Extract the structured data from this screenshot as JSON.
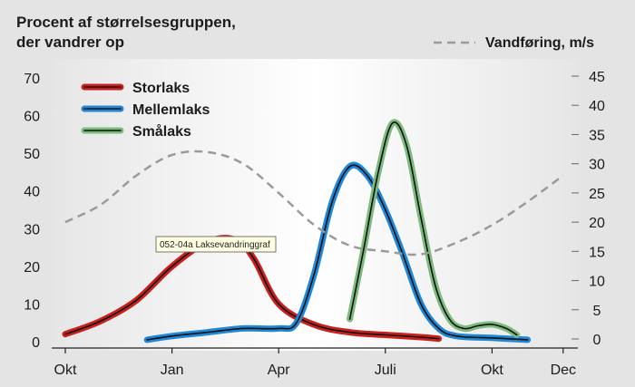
{
  "chart_data": {
    "type": "line",
    "title": "Procent af størrelsesgruppen,\nder vandrer op",
    "title_lines": [
      "Procent af størrelsesgruppen,",
      "der vandrer op"
    ],
    "secondary_label": "Vandføring, m/s",
    "x_ticks": [
      "Okt",
      "Jan",
      "Apr",
      "Juli",
      "Okt",
      "Dec"
    ],
    "x_tick_months": [
      0,
      3,
      6,
      9,
      12,
      14
    ],
    "xlim": [
      -0.15,
      14.6
    ],
    "ylim": [
      0,
      75
    ],
    "y_ticks": [
      0,
      10,
      20,
      30,
      40,
      50,
      60,
      70
    ],
    "y2lim": [
      0,
      50
    ],
    "y2_ticks": [
      0,
      5,
      10,
      15,
      20,
      25,
      30,
      35,
      40,
      45
    ],
    "grid": false,
    "legend_position": "top-left",
    "tooltip": "052-04a Laksevandringgraf",
    "series": [
      {
        "name": "Storlaks",
        "color": "#c8211c",
        "axis": "left",
        "x": [
          0,
          1,
          2,
          3,
          4,
          4.8,
          5.3,
          6,
          7,
          8,
          9,
          10,
          10.5
        ],
        "y": [
          2,
          5.5,
          11,
          20,
          26.5,
          27,
          22,
          10,
          4.5,
          2.5,
          1.8,
          1.2,
          0.8
        ]
      },
      {
        "name": "Mellemlaks",
        "color": "#1f87d6",
        "axis": "left",
        "x": [
          2.3,
          3,
          4,
          5,
          6,
          6.5,
          7,
          7.5,
          8,
          8.5,
          9,
          9.5,
          10,
          10.5,
          11,
          12,
          13
        ],
        "y": [
          0.5,
          1.5,
          2.5,
          3.5,
          3.5,
          5,
          18,
          37,
          46.5,
          44,
          35,
          23,
          10,
          3.5,
          1.5,
          1,
          0.5
        ]
      },
      {
        "name": "Smålaks",
        "color": "#7cba7e",
        "axis": "left",
        "x": [
          8,
          8.4,
          8.8,
          9.2,
          9.6,
          10,
          10.4,
          10.8,
          11.2,
          11.6,
          12,
          12.4,
          12.7
        ],
        "y": [
          6,
          25,
          45,
          58,
          52,
          33,
          15,
          6,
          3.5,
          4.2,
          4.6,
          3.5,
          1.8
        ]
      },
      {
        "name": "Vandføring, m/s",
        "color": "#9a9a9a",
        "axis": "right",
        "dashed": true,
        "x": [
          0,
          1,
          2,
          3,
          4,
          5,
          6,
          7,
          8,
          9,
          10,
          11,
          12,
          13,
          14
        ],
        "y": [
          20,
          23,
          28,
          31.5,
          32,
          30,
          25,
          19.5,
          16,
          15,
          14.5,
          16.5,
          19.5,
          23.5,
          28
        ]
      }
    ]
  }
}
